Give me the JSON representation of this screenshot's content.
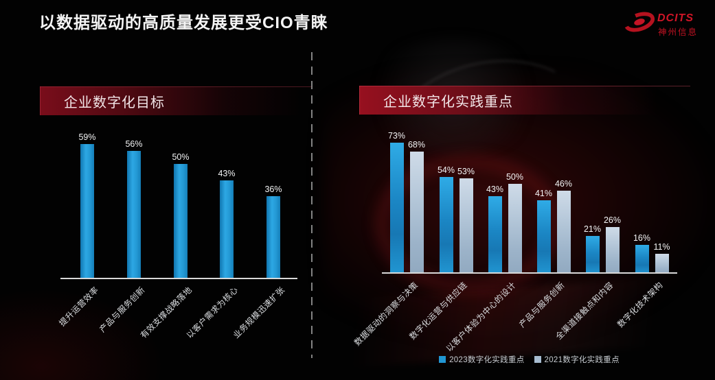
{
  "page": {
    "title": "以数据驱动的高质量发展更受CIO青睐"
  },
  "logo": {
    "brand": "DCITS",
    "company": "神州信息",
    "color": "#c41425",
    "swirl_icon": "red-galaxy-swirl"
  },
  "colors": {
    "background": "#020202",
    "accent_red": "#9b1122",
    "bar_cyan_2023": "#2196d2",
    "bar_gray_2021": "#a7bcd0",
    "axis": "#d9d9d9",
    "text": "#f5f5f5"
  },
  "divider": {
    "style": "dashed-vertical"
  },
  "chart_data": [
    {
      "type": "bar",
      "title": "企业数字化目标",
      "categories": [
        "提升运营效率",
        "产品与服务创新",
        "有效支撑战略落地",
        "以客户需求为核心",
        "业务规模迅速扩张"
      ],
      "values": [
        59,
        56,
        50,
        43,
        36
      ],
      "value_labels": [
        "59%",
        "56%",
        "50%",
        "43%",
        "36%"
      ],
      "unit": "%",
      "bar_color": "#2196d2",
      "xlabel": "",
      "ylabel": "",
      "ylim": [
        0,
        63
      ],
      "grid": false,
      "legend_position": "none",
      "x_tick_rotation": 45
    },
    {
      "type": "bar",
      "title": "企业数字化实践重点",
      "categories": [
        "数据驱动的洞察与决策",
        "数字化运营与供应链",
        "以客户体验为中心的设计",
        "产品与服务创新",
        "全渠道接触点和内容",
        "数字化技术架构"
      ],
      "series": [
        {
          "name": "2023数字化实践重点",
          "color": "#2196d2",
          "values": [
            73,
            54,
            43,
            41,
            21,
            16
          ],
          "value_labels": [
            "73%",
            "54%",
            "43%",
            "41%",
            "21%",
            "16%"
          ]
        },
        {
          "name": "2021数字化实践重点",
          "color": "#a7bcd0",
          "values": [
            68,
            53,
            50,
            46,
            26,
            11
          ],
          "value_labels": [
            "68%",
            "53%",
            "50%",
            "46%",
            "26%",
            "11%"
          ]
        }
      ],
      "unit": "%",
      "xlabel": "",
      "ylabel": "",
      "ylim": [
        0,
        80
      ],
      "grid": false,
      "legend_position": "bottom",
      "x_tick_rotation": 45
    }
  ]
}
